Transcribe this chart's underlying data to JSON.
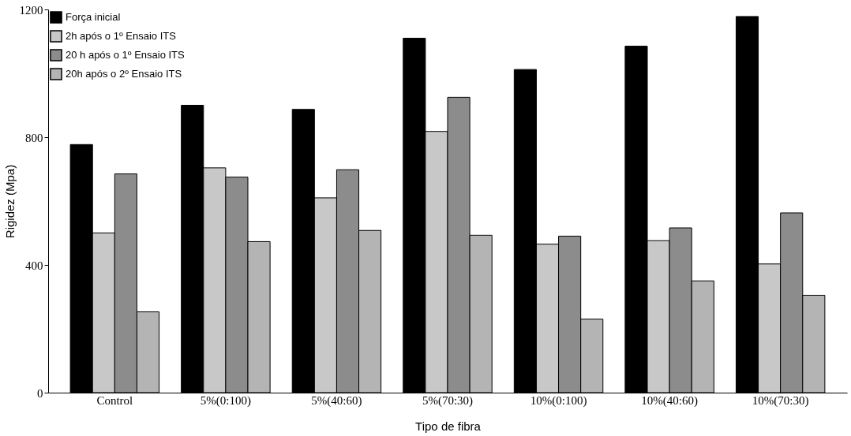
{
  "chart_data": {
    "type": "bar",
    "xlabel": "Tipo de fibra",
    "ylabel": "Rigidez (Mpa)",
    "categories": [
      "Control",
      "5%(0:100)",
      "5%(40:60)",
      "5%(70:30)",
      "10%(0:100)",
      "10%(40:60)",
      "10%(70:30)"
    ],
    "series": [
      {
        "name": "Força inicial",
        "color": "#000000",
        "values": [
          777,
          900,
          887,
          1110,
          1012,
          1085,
          1178
        ]
      },
      {
        "name": "2h após o 1º Ensaio ITS",
        "color": "#c8c8c8",
        "values": [
          500,
          704,
          610,
          818,
          465,
          476,
          403
        ]
      },
      {
        "name": "20 h após o 1º Ensaio ITS",
        "color": "#8c8c8c",
        "values": [
          685,
          675,
          698,
          925,
          490,
          516,
          563
        ]
      },
      {
        "name": "20h após o 2º Ensaio ITS",
        "color": "#b4b4b4",
        "values": [
          253,
          473,
          508,
          493,
          230,
          350,
          305
        ]
      }
    ],
    "ylim": [
      0,
      1200
    ],
    "yticks": [
      0,
      400,
      800,
      1200
    ],
    "grid": false,
    "legend": "top left"
  }
}
